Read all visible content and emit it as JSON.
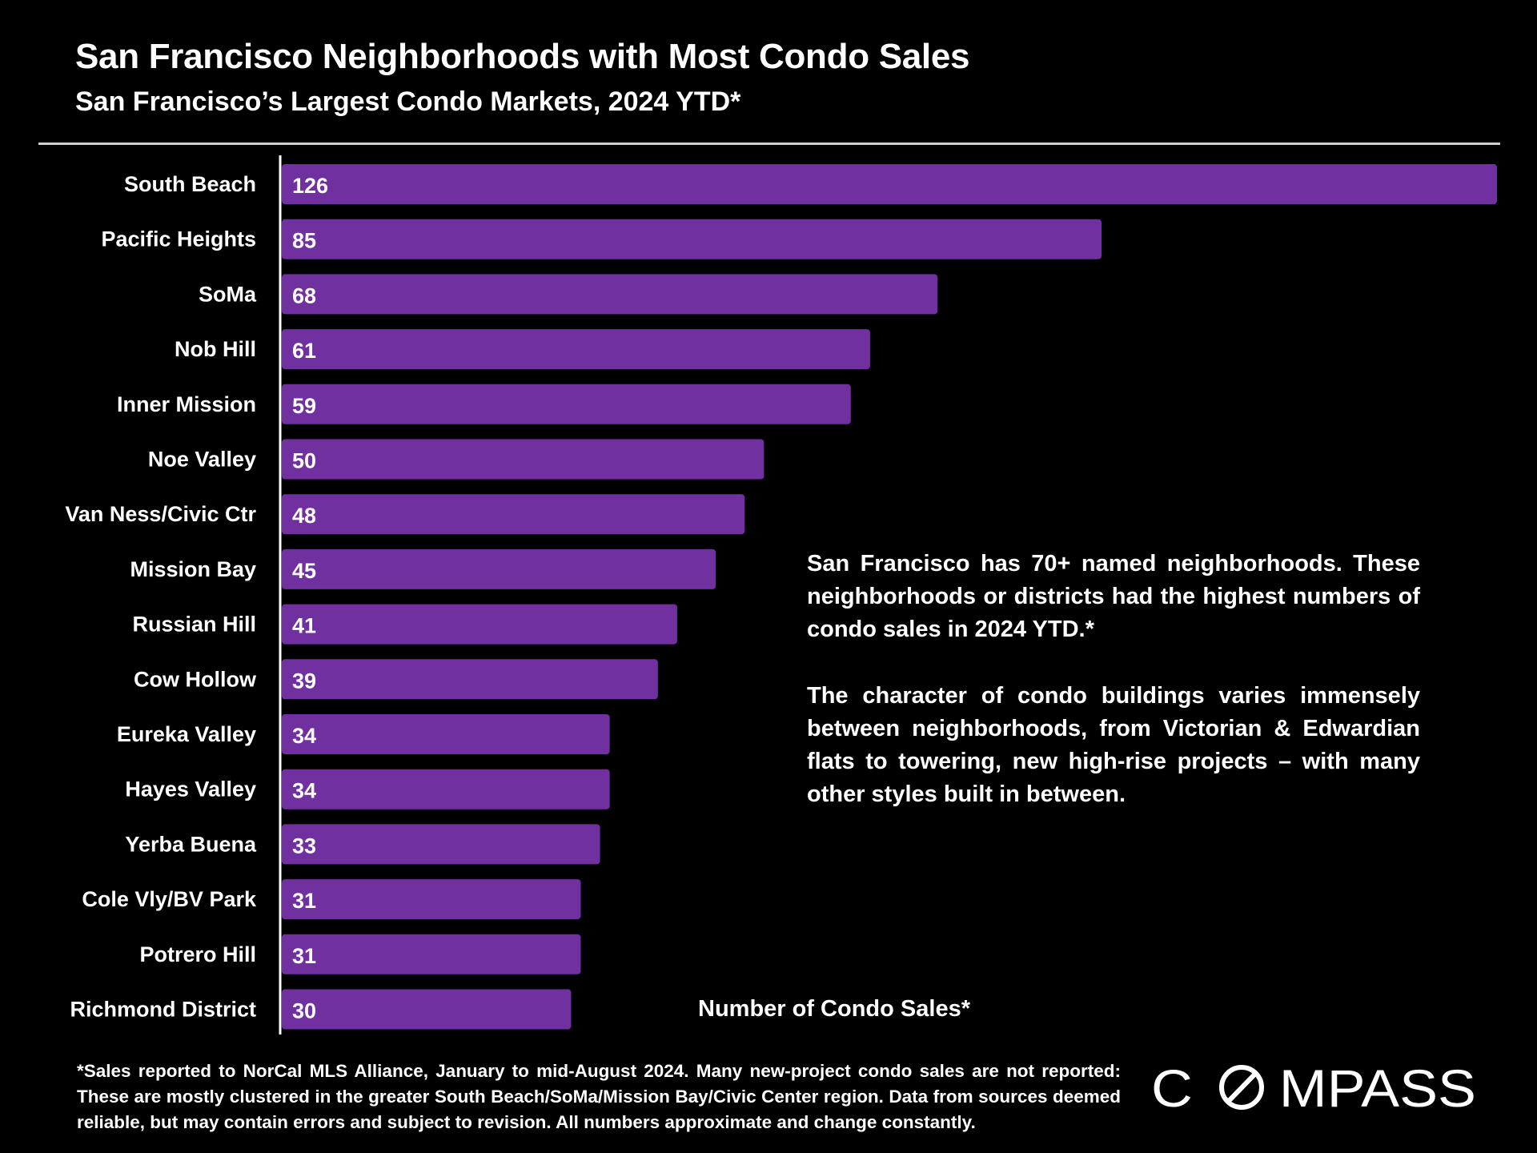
{
  "header": {
    "title": "San Francisco Neighborhoods with Most Condo Sales",
    "subtitle": "San Francisco’s Largest Condo Markets, 2024 YTD*"
  },
  "colors": {
    "bar": "#7030a0",
    "background": "#000000",
    "text": "#ffffff"
  },
  "chart_data": {
    "type": "bar",
    "orientation": "horizontal",
    "title": "San Francisco Neighborhoods with Most Condo Sales",
    "subtitle": "San Francisco’s Largest Condo Markets, 2024 YTD*",
    "xlabel": "Number of Condo Sales*",
    "ylabel": "",
    "xlim": [
      0,
      126
    ],
    "grid": false,
    "data_labels": true,
    "categories": [
      "South Beach",
      "Pacific Heights",
      "SoMa",
      "Nob Hill",
      "Inner Mission",
      "Noe Valley",
      "Van Ness/Civic Ctr",
      "Mission Bay",
      "Russian Hill",
      "Cow Hollow",
      "Eureka Valley",
      "Hayes Valley",
      "Yerba Buena",
      "Cole Vly/BV Park",
      "Potrero Hill",
      "Richmond District"
    ],
    "values": [
      126,
      85,
      68,
      61,
      59,
      50,
      48,
      45,
      41,
      39,
      34,
      34,
      33,
      31,
      31,
      30
    ]
  },
  "annotation": {
    "paragraph_1": "San Francisco has 70+ named neighborhoods. These neighborhoods or districts had the highest numbers of condo sales in 2024 YTD.*",
    "paragraph_2": "The character of condo buildings varies immensely between neighborhoods, from Victorian & Edwardian flats to towering, new high-rise projects – with many other styles built in between."
  },
  "footnote": "*Sales reported to NorCal MLS Alliance, January to mid-August 2024. Many new-project condo sales are not reported: These are mostly clustered in the greater South Beach/SoMa/Mission Bay/Civic Center region. Data from sources deemed reliable, but may contain errors and subject to revision. All numbers approximate and change constantly.",
  "logo": {
    "text": "COMPASS",
    "icon": "compass-logo-icon"
  }
}
